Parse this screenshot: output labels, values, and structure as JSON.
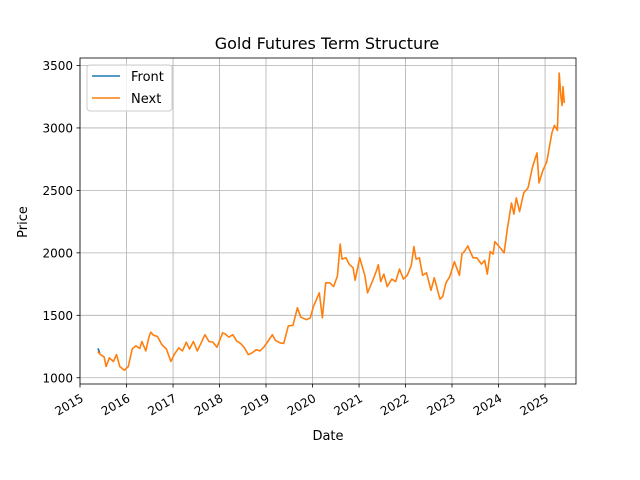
{
  "chart_data": {
    "type": "line",
    "title": "Gold Futures Term Structure",
    "xlabel": "Date",
    "ylabel": "Price",
    "xlim": [
      "2015-01-01",
      "2025-09-01"
    ],
    "ylim": [
      950,
      3560
    ],
    "x_ticks": [
      "2015",
      "2016",
      "2017",
      "2018",
      "2019",
      "2020",
      "2021",
      "2022",
      "2023",
      "2024",
      "2025"
    ],
    "y_ticks": [
      1000,
      1500,
      2000,
      2500,
      3000,
      3500
    ],
    "grid": true,
    "legend_position": "upper-left",
    "series": [
      {
        "name": "Front",
        "color": "#1f77b4",
        "points": [
          [
            "2015-05-20",
            1225
          ],
          [
            "2015-05-25",
            1230
          ],
          [
            "2015-06-05",
            1195
          ]
        ]
      },
      {
        "name": "Next",
        "color": "#ff7f0e",
        "points": [
          [
            "2015-05-20",
            1210
          ],
          [
            "2015-06-10",
            1185
          ],
          [
            "2015-07-10",
            1165
          ],
          [
            "2015-07-25",
            1090
          ],
          [
            "2015-08-20",
            1160
          ],
          [
            "2015-09-20",
            1130
          ],
          [
            "2015-10-15",
            1185
          ],
          [
            "2015-11-10",
            1090
          ],
          [
            "2015-12-15",
            1060
          ],
          [
            "2016-01-15",
            1090
          ],
          [
            "2016-02-15",
            1230
          ],
          [
            "2016-03-15",
            1255
          ],
          [
            "2016-04-15",
            1235
          ],
          [
            "2016-05-01",
            1290
          ],
          [
            "2016-06-01",
            1215
          ],
          [
            "2016-06-25",
            1325
          ],
          [
            "2016-07-10",
            1365
          ],
          [
            "2016-08-01",
            1340
          ],
          [
            "2016-09-01",
            1330
          ],
          [
            "2016-10-05",
            1265
          ],
          [
            "2016-11-10",
            1230
          ],
          [
            "2016-12-15",
            1130
          ],
          [
            "2017-01-10",
            1185
          ],
          [
            "2017-02-15",
            1240
          ],
          [
            "2017-03-15",
            1215
          ],
          [
            "2017-04-15",
            1285
          ],
          [
            "2017-05-10",
            1230
          ],
          [
            "2017-06-10",
            1290
          ],
          [
            "2017-07-10",
            1215
          ],
          [
            "2017-08-10",
            1280
          ],
          [
            "2017-09-08",
            1345
          ],
          [
            "2017-10-10",
            1290
          ],
          [
            "2017-11-10",
            1285
          ],
          [
            "2017-12-12",
            1245
          ],
          [
            "2018-01-25",
            1360
          ],
          [
            "2018-02-15",
            1350
          ],
          [
            "2018-03-15",
            1325
          ],
          [
            "2018-04-15",
            1345
          ],
          [
            "2018-05-15",
            1295
          ],
          [
            "2018-06-15",
            1275
          ],
          [
            "2018-07-15",
            1240
          ],
          [
            "2018-08-15",
            1185
          ],
          [
            "2018-09-15",
            1200
          ],
          [
            "2018-10-15",
            1225
          ],
          [
            "2018-11-15",
            1215
          ],
          [
            "2018-12-15",
            1245
          ],
          [
            "2019-01-15",
            1290
          ],
          [
            "2019-02-20",
            1345
          ],
          [
            "2019-03-15",
            1300
          ],
          [
            "2019-04-20",
            1280
          ],
          [
            "2019-05-20",
            1275
          ],
          [
            "2019-06-25",
            1415
          ],
          [
            "2019-08-01",
            1420
          ],
          [
            "2019-09-05",
            1560
          ],
          [
            "2019-10-01",
            1485
          ],
          [
            "2019-11-15",
            1465
          ],
          [
            "2019-12-15",
            1480
          ],
          [
            "2020-01-08",
            1570
          ],
          [
            "2020-02-24",
            1680
          ],
          [
            "2020-03-19",
            1480
          ],
          [
            "2020-04-14",
            1760
          ],
          [
            "2020-05-15",
            1760
          ],
          [
            "2020-06-15",
            1730
          ],
          [
            "2020-07-15",
            1815
          ],
          [
            "2020-08-06",
            2070
          ],
          [
            "2020-08-20",
            1950
          ],
          [
            "2020-09-20",
            1960
          ],
          [
            "2020-10-15",
            1910
          ],
          [
            "2020-11-15",
            1880
          ],
          [
            "2020-12-01",
            1780
          ],
          [
            "2021-01-06",
            1960
          ],
          [
            "2021-02-15",
            1820
          ],
          [
            "2021-03-08",
            1680
          ],
          [
            "2021-04-15",
            1770
          ],
          [
            "2021-05-15",
            1850
          ],
          [
            "2021-06-01",
            1905
          ],
          [
            "2021-06-20",
            1770
          ],
          [
            "2021-07-15",
            1830
          ],
          [
            "2021-08-10",
            1730
          ],
          [
            "2021-09-15",
            1790
          ],
          [
            "2021-10-15",
            1770
          ],
          [
            "2021-11-15",
            1870
          ],
          [
            "2021-12-15",
            1790
          ],
          [
            "2022-01-15",
            1820
          ],
          [
            "2022-02-15",
            1900
          ],
          [
            "2022-03-08",
            2050
          ],
          [
            "2022-03-25",
            1950
          ],
          [
            "2022-04-20",
            1960
          ],
          [
            "2022-05-15",
            1820
          ],
          [
            "2022-06-15",
            1840
          ],
          [
            "2022-07-20",
            1700
          ],
          [
            "2022-08-15",
            1800
          ],
          [
            "2022-09-28",
            1630
          ],
          [
            "2022-10-20",
            1650
          ],
          [
            "2022-11-15",
            1760
          ],
          [
            "2022-12-15",
            1810
          ],
          [
            "2023-01-20",
            1930
          ],
          [
            "2023-02-28",
            1820
          ],
          [
            "2023-03-20",
            1990
          ],
          [
            "2023-04-15",
            2020
          ],
          [
            "2023-05-05",
            2055
          ],
          [
            "2023-06-15",
            1960
          ],
          [
            "2023-07-15",
            1960
          ],
          [
            "2023-08-20",
            1910
          ],
          [
            "2023-09-15",
            1940
          ],
          [
            "2023-10-05",
            1830
          ],
          [
            "2023-10-28",
            2010
          ],
          [
            "2023-11-20",
            1990
          ],
          [
            "2023-12-04",
            2090
          ],
          [
            "2024-01-15",
            2040
          ],
          [
            "2024-02-14",
            2000
          ],
          [
            "2024-03-10",
            2190
          ],
          [
            "2024-04-12",
            2400
          ],
          [
            "2024-05-01",
            2310
          ],
          [
            "2024-05-20",
            2440
          ],
          [
            "2024-06-15",
            2330
          ],
          [
            "2024-07-17",
            2480
          ],
          [
            "2024-08-20",
            2520
          ],
          [
            "2024-09-25",
            2690
          ],
          [
            "2024-10-30",
            2800
          ],
          [
            "2024-11-14",
            2560
          ],
          [
            "2024-12-15",
            2660
          ],
          [
            "2025-01-15",
            2730
          ],
          [
            "2025-02-24",
            2960
          ],
          [
            "2025-03-15",
            3020
          ],
          [
            "2025-04-08",
            2980
          ],
          [
            "2025-04-22",
            3440
          ],
          [
            "2025-05-05",
            3250
          ],
          [
            "2025-05-15",
            3180
          ],
          [
            "2025-05-22",
            3330
          ],
          [
            "2025-06-01",
            3200
          ]
        ]
      }
    ]
  }
}
